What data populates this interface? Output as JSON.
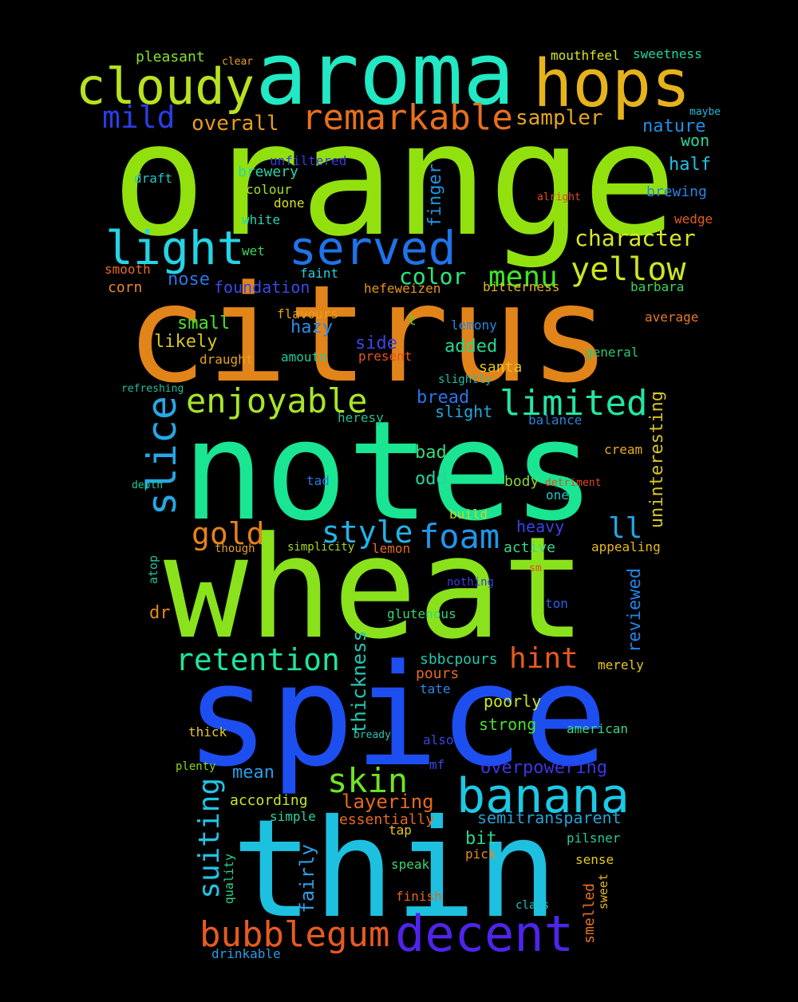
{
  "background_color": "#000000",
  "words": [
    {
      "text": "orange",
      "color": "#92e10f"
    },
    {
      "text": "citrus",
      "color": "#e1841a"
    },
    {
      "text": "notes",
      "color": "#19e592"
    },
    {
      "text": "wheat",
      "color": "#8ae21c"
    },
    {
      "text": "spice",
      "color": "#1d4ef0"
    },
    {
      "text": "thin",
      "color": "#1ec0e0"
    },
    {
      "text": "aroma",
      "color": "#22e8c4"
    },
    {
      "text": "hops",
      "color": "#e6b31b"
    },
    {
      "text": "cloudy",
      "color": "#b8e21f"
    },
    {
      "text": "banana",
      "color": "#1cc9e6"
    },
    {
      "text": "decent",
      "color": "#4e24ea"
    },
    {
      "text": "bubblegum",
      "color": "#e65a22"
    },
    {
      "text": "served",
      "color": "#1f73ea"
    },
    {
      "text": "light",
      "color": "#24d4e6"
    },
    {
      "text": "remarkable",
      "color": "#e76f1c"
    },
    {
      "text": "enjoyable",
      "color": "#a8e52a"
    },
    {
      "text": "limited",
      "color": "#22e6a3"
    },
    {
      "text": "yellow",
      "color": "#cde61e"
    },
    {
      "text": "slice",
      "color": "#25a8e6"
    },
    {
      "text": "foam",
      "color": "#2196ea"
    },
    {
      "text": "skin",
      "color": "#6ee524"
    },
    {
      "text": "style",
      "color": "#22b4e8"
    },
    {
      "text": "retention",
      "color": "#1fe59a"
    },
    {
      "text": "gold",
      "color": "#e6821b"
    },
    {
      "text": "menu",
      "color": "#3ee626"
    },
    {
      "text": "hint",
      "color": "#e85a1f"
    },
    {
      "text": "mild",
      "color": "#2a3de6"
    },
    {
      "text": "character",
      "color": "#d8e62a"
    },
    {
      "text": "overall",
      "color": "#e69c1e"
    },
    {
      "text": "sampler",
      "color": "#e6a520"
    },
    {
      "text": "suiting",
      "color": "#22c4e6"
    },
    {
      "text": "ll",
      "color": "#23a6e6"
    },
    {
      "text": "color",
      "color": "#2ae680"
    },
    {
      "text": "thickness",
      "color": "#21c9b5"
    },
    {
      "text": "uninteresting",
      "color": "#d6c626"
    },
    {
      "text": "reviewed",
      "color": "#2384e6"
    },
    {
      "text": "layering",
      "color": "#e66a1e"
    },
    {
      "text": "overpowering",
      "color": "#3c35e6"
    },
    {
      "text": "semitransparent",
      "color": "#23a3d6"
    },
    {
      "text": "finger",
      "color": "#1f96e6"
    },
    {
      "text": "fairly",
      "color": "#2aa0e6"
    },
    {
      "text": "nature",
      "color": "#2090e6"
    },
    {
      "text": "half",
      "color": "#21c0e6"
    },
    {
      "text": "won",
      "color": "#2ad6a0"
    },
    {
      "text": "brewing",
      "color": "#2884e6"
    },
    {
      "text": "wedge",
      "color": "#e65a20"
    },
    {
      "text": "barbara",
      "color": "#3ad660"
    },
    {
      "text": "average",
      "color": "#e67a22"
    },
    {
      "text": "general",
      "color": "#28c870"
    },
    {
      "text": "mouthfeel",
      "color": "#d8e620"
    },
    {
      "text": "sweetness",
      "color": "#22d6a6"
    },
    {
      "text": "maybe",
      "color": "#22b8d6"
    },
    {
      "text": "pleasant",
      "color": "#8ae02a"
    },
    {
      "text": "clear",
      "color": "#e6a01e"
    },
    {
      "text": "unfiltered",
      "color": "#3a3ae6"
    },
    {
      "text": "brewery",
      "color": "#22d6a8"
    },
    {
      "text": "draft",
      "color": "#22c8c8"
    },
    {
      "text": "colour",
      "color": "#a4e020"
    },
    {
      "text": "done",
      "color": "#d6e022"
    },
    {
      "text": "white",
      "color": "#24d6b4"
    },
    {
      "text": "wet",
      "color": "#38d860"
    },
    {
      "text": "faint",
      "color": "#2acfe0"
    },
    {
      "text": "smooth",
      "color": "#e66a22"
    },
    {
      "text": "corn",
      "color": "#e6882a"
    },
    {
      "text": "nose",
      "color": "#2a76e6"
    },
    {
      "text": "foundation",
      "color": "#3a4ae6"
    },
    {
      "text": "hefeweizen",
      "color": "#e6941e"
    },
    {
      "text": "bitterness",
      "color": "#e6b822"
    },
    {
      "text": "alright",
      "color": "#e64a22"
    },
    {
      "text": "small",
      "color": "#4ae22a"
    },
    {
      "text": "likely",
      "color": "#d6c622"
    },
    {
      "text": "hazy",
      "color": "#2a8ae6"
    },
    {
      "text": "side",
      "color": "#3a46e6"
    },
    {
      "text": "added",
      "color": "#28d690"
    },
    {
      "text": "santa",
      "color": "#e6c622"
    },
    {
      "text": "t",
      "color": "#4ad628"
    },
    {
      "text": "lemony",
      "color": "#2888d6"
    },
    {
      "text": "flavours",
      "color": "#e6a01e"
    },
    {
      "text": "amoutn",
      "color": "#24c8a0"
    },
    {
      "text": "present",
      "color": "#e6541e"
    },
    {
      "text": "slightly",
      "color": "#22c0a8"
    },
    {
      "text": "draught",
      "color": "#e6a01e"
    },
    {
      "text": "refreshing",
      "color": "#22c0a0"
    },
    {
      "text": "bread",
      "color": "#2a74e6"
    },
    {
      "text": "slight",
      "color": "#22a8e0"
    },
    {
      "text": "heresy",
      "color": "#28c08a"
    },
    {
      "text": "balance",
      "color": "#2a80d6"
    },
    {
      "text": "cream",
      "color": "#e6ac1e"
    },
    {
      "text": "bad",
      "color": "#3ad67a"
    },
    {
      "text": "odd",
      "color": "#22d6a0"
    },
    {
      "text": "body",
      "color": "#8ad62a"
    },
    {
      "text": "detriment",
      "color": "#e64a1e"
    },
    {
      "text": "one",
      "color": "#22c4c4"
    },
    {
      "text": "tad",
      "color": "#2a78e6"
    },
    {
      "text": "depth",
      "color": "#22c8a0"
    },
    {
      "text": "build",
      "color": "#c8d622"
    },
    {
      "text": "heavy",
      "color": "#3a42e6"
    },
    {
      "text": "active",
      "color": "#3ad690"
    },
    {
      "text": "appealing",
      "color": "#e6b81e"
    },
    {
      "text": "simplicity",
      "color": "#a8d622"
    },
    {
      "text": "though",
      "color": "#e6a01e"
    },
    {
      "text": "lemon",
      "color": "#e66a22"
    },
    {
      "text": "atop",
      "color": "#28c0a0"
    },
    {
      "text": "nothing",
      "color": "#3a3ae6"
    },
    {
      "text": "sm",
      "color": "#e64a22"
    },
    {
      "text": "dr",
      "color": "#e6881e"
    },
    {
      "text": "ton",
      "color": "#2a60e6"
    },
    {
      "text": "glutenous",
      "color": "#3ad670"
    },
    {
      "text": "sbbcpours",
      "color": "#22c8b0"
    },
    {
      "text": "pours",
      "color": "#e66a22"
    },
    {
      "text": "merely",
      "color": "#e6c81e"
    },
    {
      "text": "tate",
      "color": "#2a88e6"
    },
    {
      "text": "poorly",
      "color": "#c8e622"
    },
    {
      "text": "strong",
      "color": "#4ae02a"
    },
    {
      "text": "american",
      "color": "#3ad680"
    },
    {
      "text": "thick",
      "color": "#e6c822"
    },
    {
      "text": "bready",
      "color": "#28c0b0"
    },
    {
      "text": "also",
      "color": "#3a46e6"
    },
    {
      "text": "plenty",
      "color": "#8ad622"
    },
    {
      "text": "mean",
      "color": "#2a9ce6"
    },
    {
      "text": "mf",
      "color": "#3a46e6"
    },
    {
      "text": "according",
      "color": "#c8e622"
    },
    {
      "text": "simple",
      "color": "#2ad6a0"
    },
    {
      "text": "essentially",
      "color": "#e66a22"
    },
    {
      "text": "tap",
      "color": "#e6c81e"
    },
    {
      "text": "bit",
      "color": "#28d690"
    },
    {
      "text": "pilsner",
      "color": "#28c8a0"
    },
    {
      "text": "pick",
      "color": "#e68a22"
    },
    {
      "text": "speak",
      "color": "#3ad670"
    },
    {
      "text": "sense",
      "color": "#e6c822"
    },
    {
      "text": "quality",
      "color": "#2ad690"
    },
    {
      "text": "finish",
      "color": "#e6641e"
    },
    {
      "text": "class",
      "color": "#22c0c0"
    },
    {
      "text": "sweet",
      "color": "#e6b81e"
    },
    {
      "text": "smelled",
      "color": "#e6741e"
    },
    {
      "text": "drinkable",
      "color": "#2a9ce6"
    }
  ]
}
